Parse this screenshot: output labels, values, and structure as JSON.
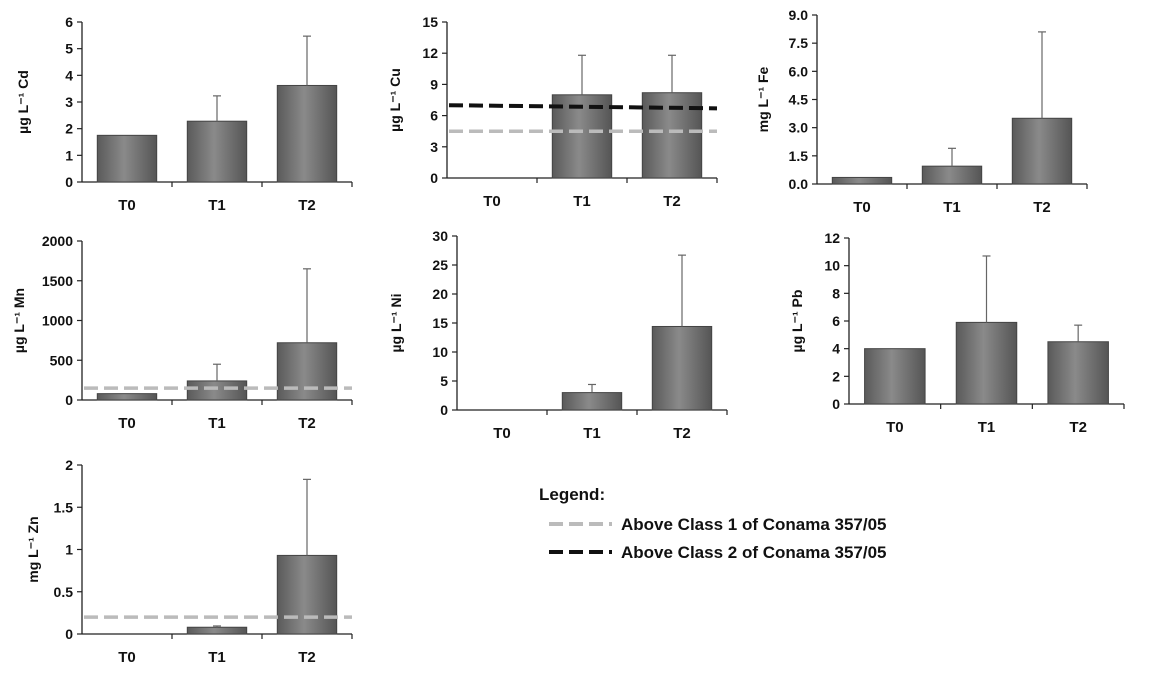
{
  "chart_data": [
    {
      "type": "bar",
      "categories": [
        "T0",
        "T1",
        "T2"
      ],
      "ylabel": "µg L⁻¹ Cd",
      "ylim": [
        0,
        6
      ],
      "yticks": [
        "0",
        "1",
        "2",
        "3",
        "4",
        "5",
        "6"
      ],
      "values": [
        1.75,
        2.28,
        3.62
      ],
      "errors": [
        0,
        0.95,
        1.85
      ],
      "thresholds": []
    },
    {
      "type": "bar",
      "categories": [
        "T0",
        "T1",
        "T2"
      ],
      "ylabel": "µg L⁻¹ Cu",
      "ylim": [
        0,
        15
      ],
      "yticks": [
        "0",
        "3",
        "6",
        "9",
        "12",
        "15"
      ],
      "values": [
        null,
        8.0,
        8.2
      ],
      "errors": [
        0,
        3.8,
        3.6
      ],
      "thresholds": [
        {
          "class": "Class 2",
          "color": "#111111",
          "y_start": 7.0,
          "y_end": 6.7
        },
        {
          "class": "Class 1",
          "color": "#bbbbbb",
          "y_start": 4.5,
          "y_end": 4.5
        }
      ]
    },
    {
      "type": "bar",
      "categories": [
        "T0",
        "T1",
        "T2"
      ],
      "ylabel": "mg L⁻¹ Fe",
      "ylim": [
        0,
        9
      ],
      "yticks": [
        "0.0",
        "1.5",
        "3.0",
        "4.5",
        "6.0",
        "7.5",
        "9.0"
      ],
      "values": [
        0.35,
        0.95,
        3.5
      ],
      "errors": [
        0,
        0.95,
        4.6
      ],
      "thresholds": []
    },
    {
      "type": "bar",
      "categories": [
        "T0",
        "T1",
        "T2"
      ],
      "ylabel": "µg L⁻¹ Mn",
      "ylim": [
        0,
        2000
      ],
      "yticks": [
        "0",
        "500",
        "1000",
        "1500",
        "2000"
      ],
      "values": [
        80,
        240,
        720
      ],
      "errors": [
        0,
        210,
        930
      ],
      "thresholds": [
        {
          "class": "Class 1",
          "color": "#bbbbbb",
          "y_start": 150,
          "y_end": 150
        }
      ]
    },
    {
      "type": "bar",
      "categories": [
        "T0",
        "T1",
        "T2"
      ],
      "ylabel": "µg L⁻¹ Ni",
      "ylim": [
        0,
        30
      ],
      "yticks": [
        "0",
        "5",
        "10",
        "15",
        "20",
        "25",
        "30"
      ],
      "values": [
        null,
        3.0,
        14.4
      ],
      "errors": [
        0,
        1.4,
        12.3
      ],
      "thresholds": []
    },
    {
      "type": "bar",
      "categories": [
        "T0",
        "T1",
        "T2"
      ],
      "ylabel": "µg L⁻¹ Pb",
      "ylim": [
        0,
        12
      ],
      "yticks": [
        "0",
        "2",
        "4",
        "6",
        "8",
        "10",
        "12"
      ],
      "values": [
        4.0,
        5.9,
        4.5
      ],
      "errors": [
        0,
        4.8,
        1.2
      ],
      "thresholds": []
    },
    {
      "type": "bar",
      "categories": [
        "T0",
        "T1",
        "T2"
      ],
      "ylabel": "mg L⁻¹ Zn",
      "ylim": [
        0,
        2
      ],
      "yticks": [
        "0",
        "0.5",
        "1",
        "1.5",
        "2"
      ],
      "values": [
        null,
        0.08,
        0.93
      ],
      "errors": [
        0,
        0.015,
        0.9
      ],
      "thresholds": [
        {
          "class": "Class 1",
          "color": "#bbbbbb",
          "y_start": 0.2,
          "y_end": 0.2
        }
      ]
    }
  ],
  "legend": {
    "title": "Legend:",
    "items": [
      {
        "label": "Above Class 1 of Conama 357/05",
        "color": "#bbbbbb"
      },
      {
        "label": "Above Class 2 of Conama 357/05",
        "color": "#111111"
      }
    ]
  }
}
